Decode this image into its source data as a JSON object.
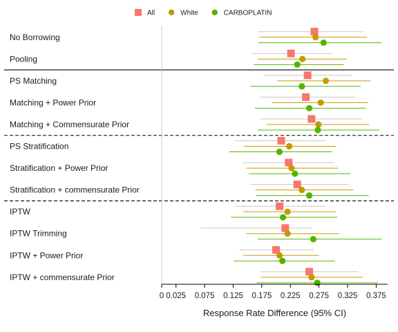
{
  "chart_data": {
    "type": "scatter",
    "subtype": "forest-plot",
    "title": "",
    "xlabel": "Response Rate Difference (95% CI)",
    "ylabel": "",
    "xlim": [
      0,
      0.395
    ],
    "xticks": [
      0,
      0.025,
      0.075,
      0.125,
      0.175,
      0.225,
      0.275,
      0.325,
      0.375
    ],
    "xtick_labels": [
      "0",
      "0.025",
      "0.075",
      "0.125",
      "0.175",
      "0.225",
      "0.275",
      "0.325",
      "0.375"
    ],
    "reference_line": 0,
    "grid": false,
    "legend": {
      "placement": "top-center"
    },
    "series": [
      {
        "name": "All",
        "color": "#F8766D",
        "marker": "square"
      },
      {
        "name": "White",
        "color": "#C49A00",
        "marker": "circle"
      },
      {
        "name": "CARBOPLATIN",
        "color": "#53B400",
        "marker": "circle"
      }
    ],
    "categories": [
      "No Borrowing",
      "Pooling",
      "PS Matching",
      "Matching + Power Prior",
      "Matching + Commensurate Prior",
      "PS Stratification",
      "Stratification + Power Prior",
      "Stratification + commensurate Prior",
      "IPTW",
      "IPTW Trimming",
      "IPTW + Power Prior",
      "IPTW + commensurate Prior"
    ],
    "separators": [
      {
        "after": "Pooling",
        "style": "solid"
      },
      {
        "after": "Matching + Commensurate Prior",
        "style": "dashed"
      },
      {
        "after": "Stratification + commensurate Prior",
        "style": "dashed"
      }
    ],
    "data": [
      {
        "category": "No Borrowing",
        "values": [
          {
            "series": "All",
            "estimate": 0.267,
            "lower": 0.169,
            "upper": 0.352
          },
          {
            "series": "White",
            "estimate": 0.269,
            "lower": 0.171,
            "upper": 0.359
          },
          {
            "series": "CARBOPLATIN",
            "estimate": 0.283,
            "lower": 0.169,
            "upper": 0.384
          }
        ]
      },
      {
        "category": "Pooling",
        "values": [
          {
            "series": "All",
            "estimate": 0.226,
            "lower": 0.158,
            "upper": 0.298
          },
          {
            "series": "White",
            "estimate": 0.246,
            "lower": 0.168,
            "upper": 0.323
          },
          {
            "series": "CARBOPLATIN",
            "estimate": 0.237,
            "lower": 0.161,
            "upper": 0.318
          }
        ]
      },
      {
        "category": "PS Matching",
        "values": [
          {
            "series": "All",
            "estimate": 0.255,
            "lower": 0.178,
            "upper": 0.333
          },
          {
            "series": "White",
            "estimate": 0.287,
            "lower": 0.202,
            "upper": 0.365
          },
          {
            "series": "CARBOPLATIN",
            "estimate": 0.245,
            "lower": 0.155,
            "upper": 0.348
          }
        ]
      },
      {
        "category": "Matching + Power Prior",
        "values": [
          {
            "series": "All",
            "estimate": 0.252,
            "lower": 0.171,
            "upper": 0.338
          },
          {
            "series": "White",
            "estimate": 0.278,
            "lower": 0.193,
            "upper": 0.361
          },
          {
            "series": "CARBOPLATIN",
            "estimate": 0.258,
            "lower": 0.163,
            "upper": 0.357
          }
        ]
      },
      {
        "category": "Matching + Commensurate Prior",
        "values": [
          {
            "series": "All",
            "estimate": 0.262,
            "lower": 0.172,
            "upper": 0.351
          },
          {
            "series": "White",
            "estimate": 0.274,
            "lower": 0.183,
            "upper": 0.363
          },
          {
            "series": "CARBOPLATIN",
            "estimate": 0.273,
            "lower": 0.168,
            "upper": 0.381
          }
        ]
      },
      {
        "category": "PS Stratification",
        "values": [
          {
            "series": "All",
            "estimate": 0.209,
            "lower": 0.128,
            "upper": 0.287
          },
          {
            "series": "White",
            "estimate": 0.223,
            "lower": 0.144,
            "upper": 0.305
          },
          {
            "series": "CARBOPLATIN",
            "estimate": 0.206,
            "lower": 0.118,
            "upper": 0.298
          }
        ]
      },
      {
        "category": "Stratification + Power Prior",
        "values": [
          {
            "series": "All",
            "estimate": 0.222,
            "lower": 0.142,
            "upper": 0.302
          },
          {
            "series": "White",
            "estimate": 0.227,
            "lower": 0.148,
            "upper": 0.308
          },
          {
            "series": "CARBOPLATIN",
            "estimate": 0.233,
            "lower": 0.152,
            "upper": 0.33
          }
        ]
      },
      {
        "category": "Stratification + commensurate Prior",
        "values": [
          {
            "series": "All",
            "estimate": 0.237,
            "lower": 0.156,
            "upper": 0.327
          },
          {
            "series": "White",
            "estimate": 0.245,
            "lower": 0.164,
            "upper": 0.335
          },
          {
            "series": "CARBOPLATIN",
            "estimate": 0.258,
            "lower": 0.165,
            "upper": 0.362
          }
        ]
      },
      {
        "category": "IPTW",
        "values": [
          {
            "series": "All",
            "estimate": 0.206,
            "lower": 0.128,
            "upper": 0.286
          },
          {
            "series": "White",
            "estimate": 0.22,
            "lower": 0.143,
            "upper": 0.305
          },
          {
            "series": "CARBOPLATIN",
            "estimate": 0.212,
            "lower": 0.121,
            "upper": 0.307
          }
        ]
      },
      {
        "category": "IPTW Trimming",
        "values": [
          {
            "series": "All",
            "estimate": 0.216,
            "lower": 0.068,
            "upper": 0.263
          },
          {
            "series": "White",
            "estimate": 0.22,
            "lower": 0.148,
            "upper": 0.31
          },
          {
            "series": "CARBOPLATIN",
            "estimate": 0.265,
            "lower": 0.168,
            "upper": 0.385
          }
        ]
      },
      {
        "category": "IPTW + Power Prior",
        "values": [
          {
            "series": "All",
            "estimate": 0.2,
            "lower": 0.136,
            "upper": 0.266
          },
          {
            "series": "White",
            "estimate": 0.206,
            "lower": 0.143,
            "upper": 0.275
          },
          {
            "series": "CARBOPLATIN",
            "estimate": 0.211,
            "lower": 0.126,
            "upper": 0.303
          }
        ]
      },
      {
        "category": "IPTW + commensurate Prior",
        "values": [
          {
            "series": "All",
            "estimate": 0.258,
            "lower": 0.172,
            "upper": 0.344
          },
          {
            "series": "White",
            "estimate": 0.262,
            "lower": 0.173,
            "upper": 0.352
          },
          {
            "series": "CARBOPLATIN",
            "estimate": 0.272,
            "lower": 0.166,
            "upper": 0.378
          }
        ]
      }
    ]
  }
}
